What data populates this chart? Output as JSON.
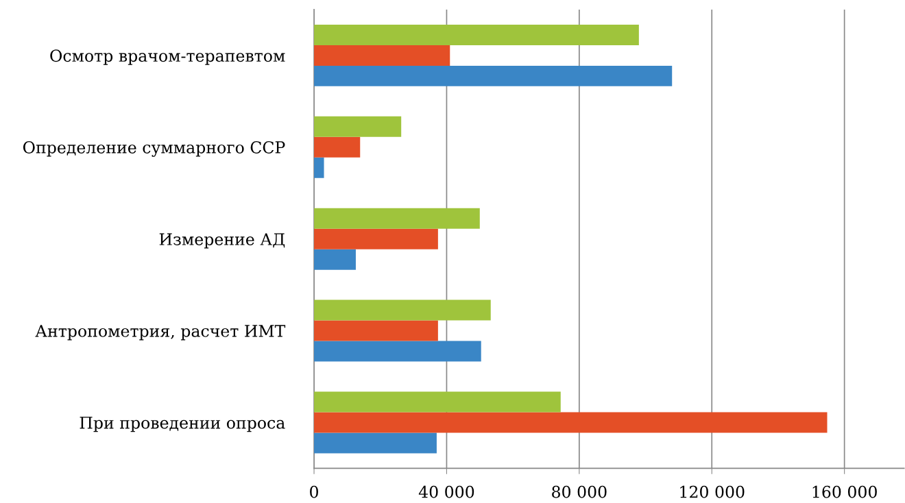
{
  "chart_data": {
    "type": "bar",
    "orientation": "horizontal",
    "categories": [
      "Осмотр врачом-терапевтом",
      "Определение суммарного ССР",
      "Измерение АД",
      "Антропометрия, расчет ИМТ",
      "При проведении опроса"
    ],
    "series": [
      {
        "color": "#3a86c6",
        "values": [
          108000,
          3000,
          12600,
          50400,
          37000
        ]
      },
      {
        "color": "#e44f26",
        "values": [
          41000,
          13900,
          37400,
          37400,
          154800
        ]
      },
      {
        "color": "#9fc43c",
        "values": [
          98000,
          26300,
          50000,
          53300,
          74400
        ]
      }
    ],
    "xlim": [
      0,
      178000
    ],
    "xticks": [
      {
        "value": 0,
        "label": "0"
      },
      {
        "value": 40000,
        "label": "40 000"
      },
      {
        "value": 80000,
        "label": "80 000"
      },
      {
        "value": 120000,
        "label": "120 000"
      },
      {
        "value": 160000,
        "label": "160 000"
      }
    ],
    "grid": "x",
    "legend": false
  }
}
